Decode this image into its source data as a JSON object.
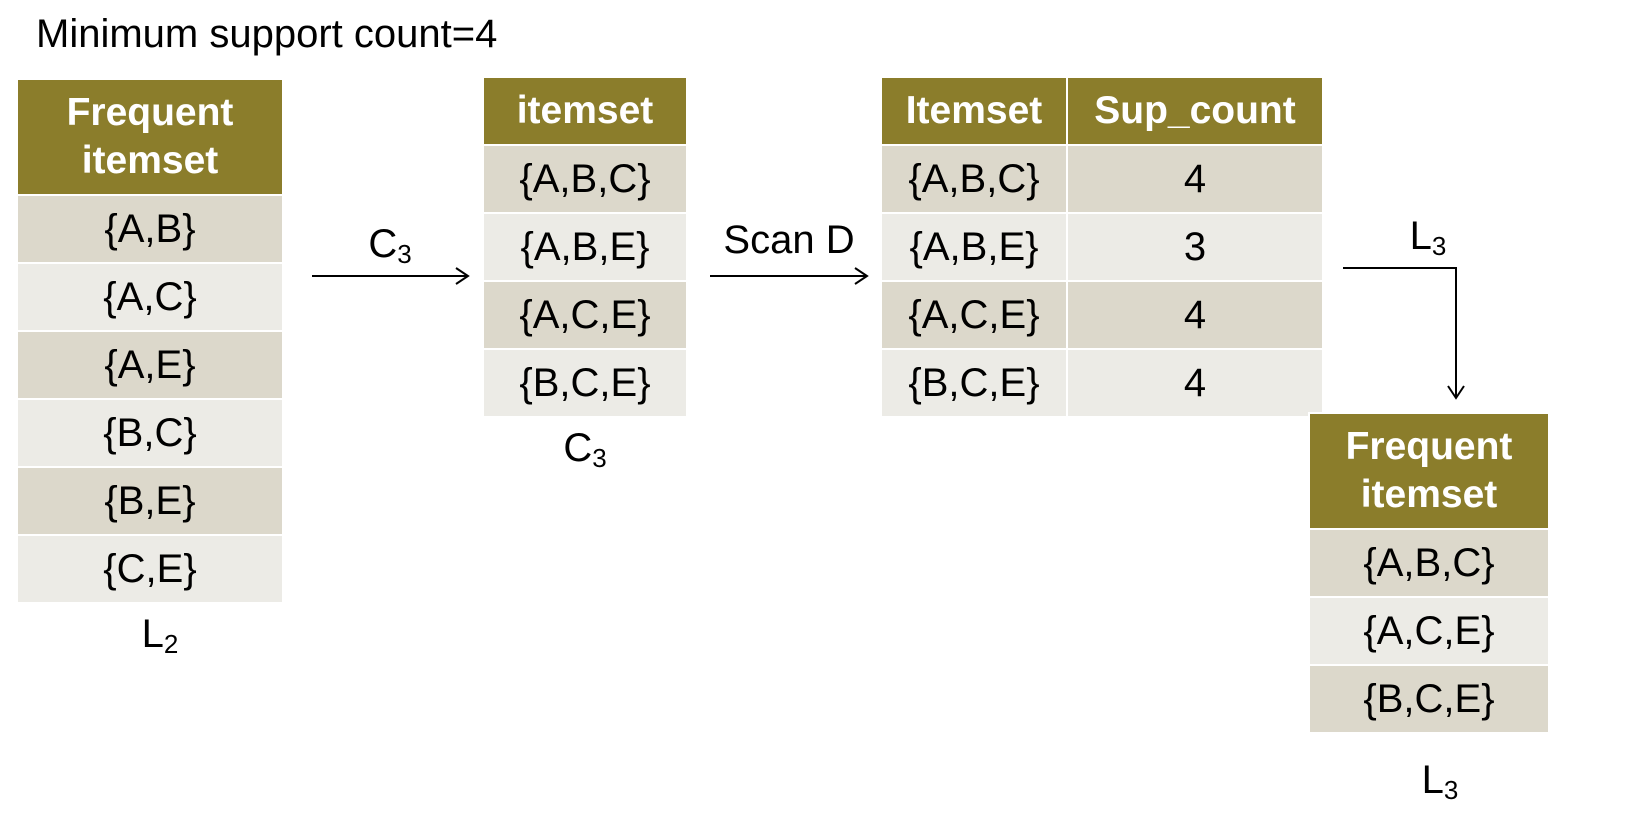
{
  "title": "Minimum support count=4",
  "l2_table": {
    "header": "Frequent itemset",
    "rows": [
      "{A,B}",
      "{A,C}",
      "{A,E}",
      "{B,C}",
      "{B,E}",
      "{C,E}"
    ],
    "caption_main": "L",
    "caption_sub": "2"
  },
  "arrow1_label": {
    "main": "C",
    "sub": "3"
  },
  "c3_table": {
    "header": "itemset",
    "rows": [
      "{A,B,C}",
      "{A,B,E}",
      "{A,C,E}",
      "{B,C,E}"
    ],
    "caption_main": "C",
    "caption_sub": "3"
  },
  "arrow2_label": "Scan D",
  "count_table": {
    "headers": [
      "Itemset",
      "Sup_count"
    ],
    "rows": [
      {
        "itemset": "{A,B,C}",
        "count": "4"
      },
      {
        "itemset": "{A,B,E}",
        "count": "3"
      },
      {
        "itemset": "{A,C,E}",
        "count": "4"
      },
      {
        "itemset": "{B,C,E}",
        "count": "4"
      }
    ]
  },
  "arrow3_label": {
    "main": "L",
    "sub": "3"
  },
  "l3_table": {
    "header": "Frequent itemset",
    "rows": [
      "{A,B,C}",
      "{A,C,E}",
      "{B,C,E}"
    ],
    "caption_main": "L",
    "caption_sub": "3"
  },
  "colors": {
    "header_bg": "#8b7d2b",
    "row_dark": "#dcd8cb",
    "row_light": "#ecebe6"
  }
}
